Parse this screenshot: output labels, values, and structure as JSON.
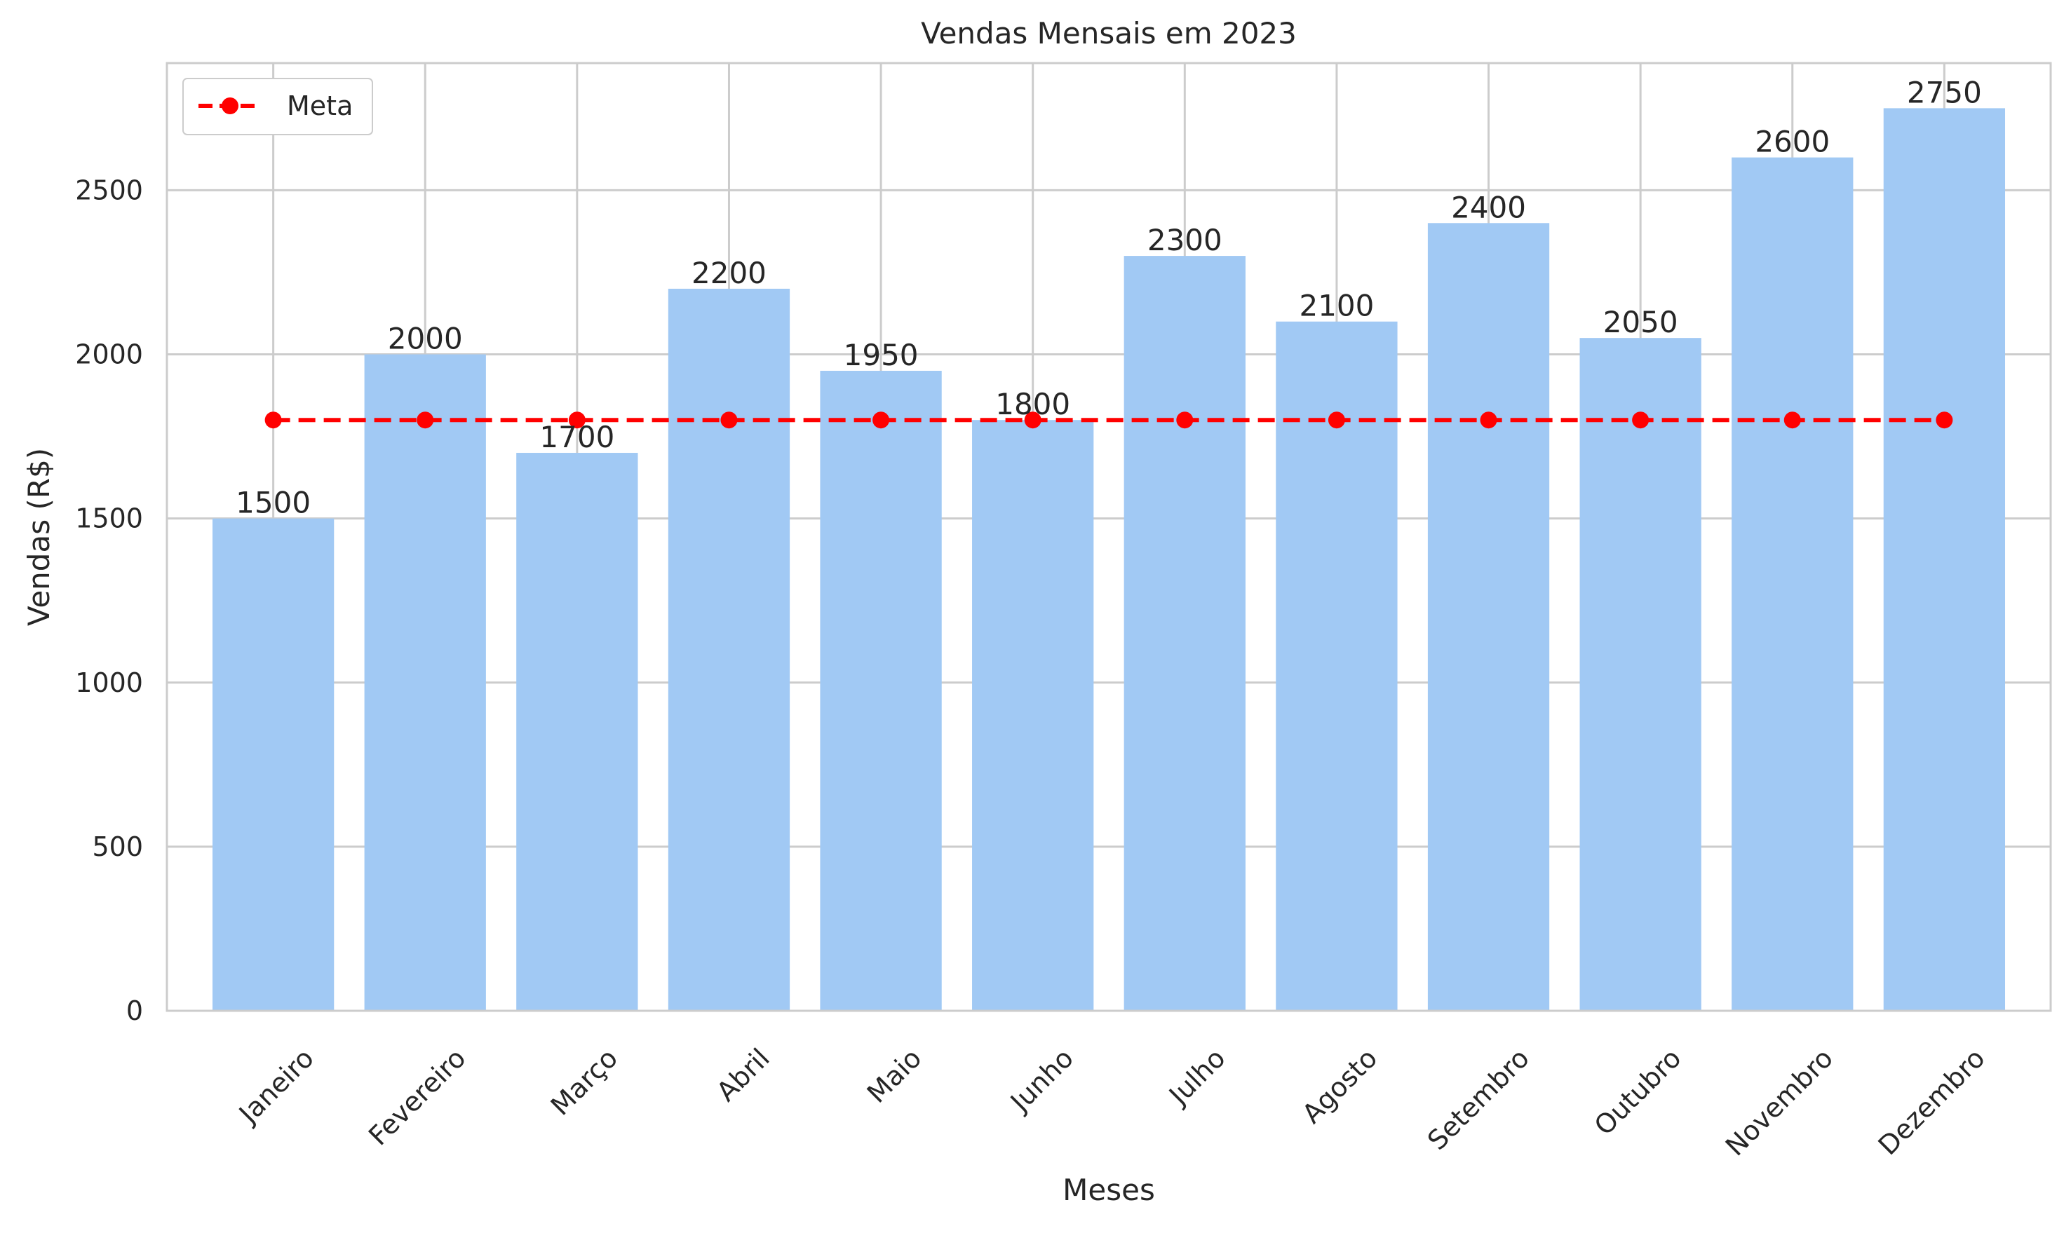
{
  "chart_data": {
    "type": "bar",
    "title": "Vendas Mensais em 2023",
    "xlabel": "Meses",
    "ylabel": "Vendas (R$)",
    "categories": [
      "Janeiro",
      "Fevereiro",
      "Março",
      "Abril",
      "Maio",
      "Junho",
      "Julho",
      "Agosto",
      "Setembro",
      "Outubro",
      "Novembro",
      "Dezembro"
    ],
    "values": [
      1500,
      2000,
      1700,
      2200,
      1950,
      1800,
      2300,
      2100,
      2400,
      2050,
      2600,
      2750
    ],
    "data_labels": [
      "1500",
      "2000",
      "1700",
      "2200",
      "1950",
      "1800",
      "2300",
      "2100",
      "2400",
      "2050",
      "2600",
      "2750"
    ],
    "target": {
      "name": "Meta",
      "type": "line",
      "value": 1800,
      "style": "dashed",
      "marker": "circle",
      "color": "#ff0000"
    },
    "ylim": [
      0,
      2887.5
    ],
    "yticks": [
      0,
      500,
      1000,
      1500,
      2000,
      2500
    ],
    "ytick_labels": [
      "0",
      "500",
      "1000",
      "1500",
      "2000",
      "2500"
    ],
    "grid": true,
    "legend_position": "top-left",
    "bar_color": "#a1c9f4",
    "xtick_rotation": -45
  }
}
